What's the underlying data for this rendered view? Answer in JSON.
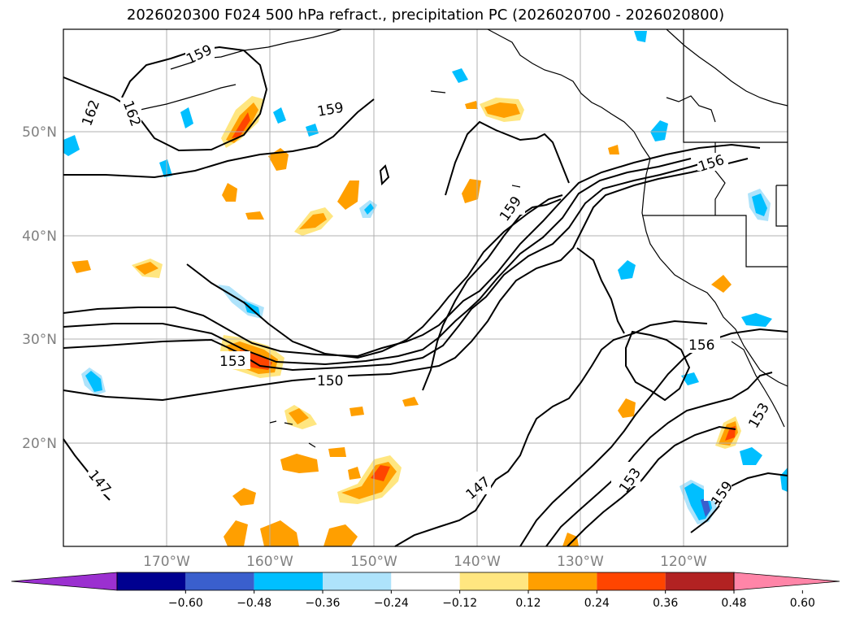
{
  "title": "2026020300 F024 500 hPa refract., precipitation PC (2026020700 - 2026020800)",
  "lat_labels": [
    "50°N",
    "40°N",
    "30°N",
    "20°N"
  ],
  "lon_labels": [
    "170°W",
    "160°W",
    "150°W",
    "140°W",
    "130°W",
    "120°W"
  ],
  "contour_labels": [
    "162",
    "162",
    "159",
    "159",
    "159",
    "156",
    "156",
    "153",
    "153",
    "153",
    "150",
    "147",
    "147",
    "159"
  ],
  "colorbar": {
    "ticks": [
      "−0.60",
      "−0.48",
      "−0.36",
      "−0.24",
      "−0.12",
      "0.12",
      "0.24",
      "0.36",
      "0.48",
      "0.60"
    ],
    "colors": [
      "#9b30d0",
      "#000090",
      "#3a5fcd",
      "#00bfff",
      "#aee3fb",
      "#ffffff",
      "#ffe680",
      "#ff9f00",
      "#ff4500",
      "#b22222",
      "#ff85a8"
    ]
  },
  "colors": {
    "land_line": "#000000",
    "grid": "#b0b0b0",
    "contour": "#000000"
  }
}
